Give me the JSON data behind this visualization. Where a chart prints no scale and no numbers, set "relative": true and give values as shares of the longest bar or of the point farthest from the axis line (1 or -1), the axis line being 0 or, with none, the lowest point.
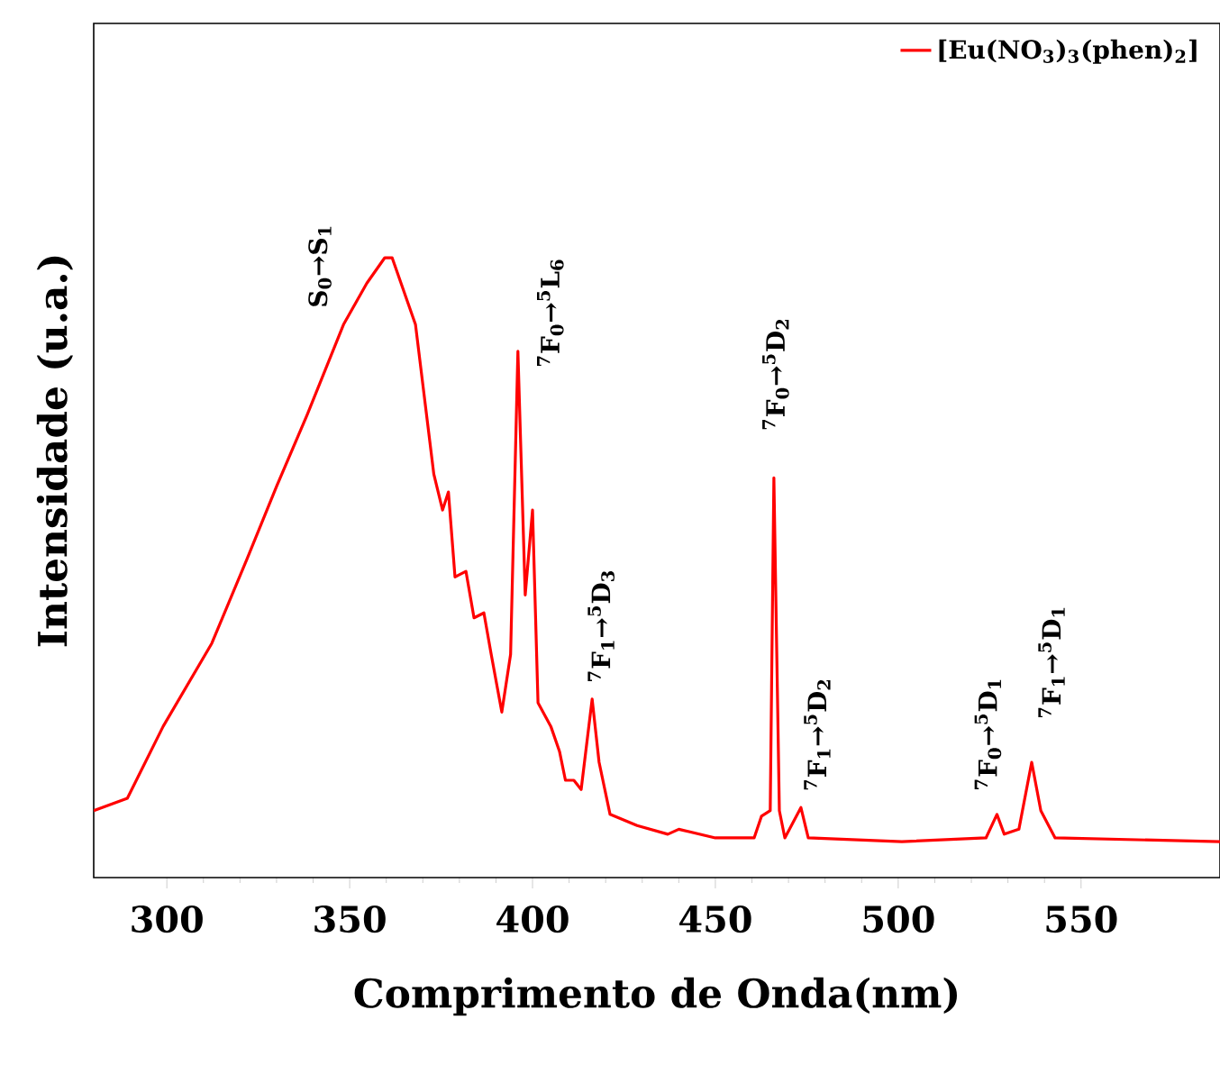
{
  "chart_data": {
    "type": "line",
    "relative": true,
    "xlabel": "Comprimento de Onda(nm)",
    "ylabel": "Intensidade (u.a.)",
    "xlim": [
      280,
      588
    ],
    "xticks": [
      300,
      350,
      400,
      450,
      500,
      550
    ],
    "x": [
      280,
      289.2,
      299,
      312.3,
      322,
      330,
      338.4,
      348.3,
      354.7,
      359.6,
      361.6,
      368,
      373,
      375.4,
      377,
      378.8,
      381.8,
      384,
      386.7,
      388.7,
      391.6,
      394,
      396,
      398,
      400,
      401.5,
      405,
      407.4,
      409,
      411.3,
      413.3,
      416.3,
      418.2,
      421.2,
      428.6,
      437,
      440,
      450,
      460.6,
      462.6,
      465,
      466,
      467.5,
      469,
      473.4,
      475.4,
      501,
      524,
      527,
      529,
      533,
      536.5,
      539,
      542.9,
      588
    ],
    "series": [
      {
        "name": "[Eu(NO$_{3}$)$_{3}$(phen)$_{2}$]",
        "color": "#ff0000",
        "values": [
          0.108,
          0.128,
          0.244,
          0.378,
          0.515,
          0.631,
          0.747,
          0.892,
          0.959,
          1.0,
          1.0,
          0.892,
          0.651,
          0.593,
          0.622,
          0.485,
          0.494,
          0.419,
          0.427,
          0.36,
          0.267,
          0.36,
          0.849,
          0.456,
          0.593,
          0.282,
          0.244,
          0.203,
          0.157,
          0.157,
          0.142,
          0.288,
          0.186,
          0.102,
          0.084,
          0.07,
          0.078,
          0.064,
          0.064,
          0.099,
          0.108,
          0.645,
          0.108,
          0.064,
          0.113,
          0.064,
          0.058,
          0.064,
          0.102,
          0.07,
          0.078,
          0.186,
          0.108,
          0.064,
          0.058
        ]
      }
    ],
    "legend": "top right",
    "annotations": [
      {
        "text": "S$_{0}$→S$_{1}$",
        "x": 359.6,
        "y": 1.0
      },
      {
        "text": "$^{7}$F$_{0}$→$^{5}$L$_{6}$",
        "x": 396,
        "y": 0.849
      },
      {
        "text": "$^{7}$F$_{1}$→$^{5}$D$_{3}$",
        "x": 416.3,
        "y": 0.288
      },
      {
        "text": "$^{7}$F$_{0}$→$^{5}$D$_{2}$",
        "x": 466,
        "y": 0.645
      },
      {
        "text": "$^{7}$F$_{1}$→$^{5}$D$_{2}$",
        "x": 473.4,
        "y": 0.113
      },
      {
        "text": "$^{7}$F$_{0}$→$^{5}$D$_{1}$",
        "x": 527,
        "y": 0.102
      },
      {
        "text": "$^{7}$F$_{1}$→$^{5}$D$_{1}$",
        "x": 536.5,
        "y": 0.186
      }
    ]
  }
}
